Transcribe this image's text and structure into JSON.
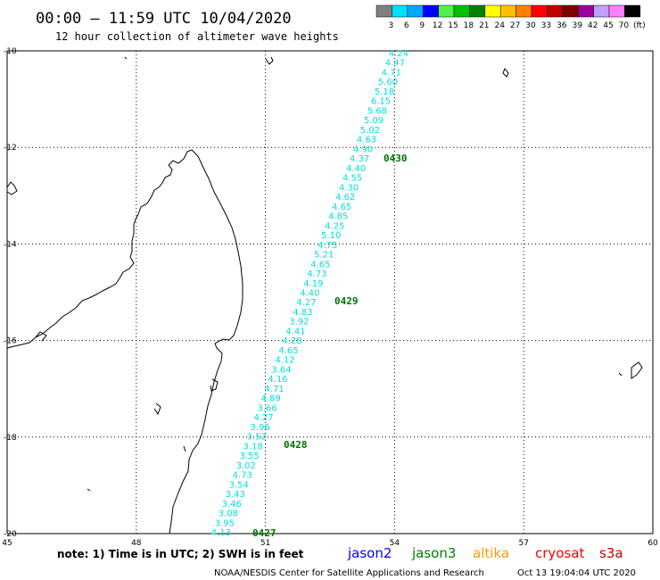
{
  "header": {
    "title": "00:00 – 11:59 UTC 10/04/2020",
    "subtitle": "12 hour collection of altimeter wave heights"
  },
  "legend": {
    "colors": [
      "#808080",
      "#00e0ff",
      "#00a8ff",
      "#0000ff",
      "#50f050",
      "#00c000",
      "#008000",
      "#ffff00",
      "#ffc000",
      "#ff8000",
      "#ff0000",
      "#c00000",
      "#800000",
      "#a000a0",
      "#c0a0ff",
      "#ff80ff",
      "#000000"
    ],
    "labels": [
      "3",
      "6",
      "9",
      "12",
      "15",
      "18",
      "21",
      "24",
      "27",
      "30",
      "33",
      "36",
      "39",
      "42",
      "45",
      "70",
      "(ft)"
    ]
  },
  "axes": {
    "lat_ticks": [
      "-10",
      "-12",
      "-14",
      "-16",
      "-18",
      "-20"
    ],
    "lon_ticks": [
      "45",
      "48",
      "51",
      "54",
      "57",
      "60"
    ]
  },
  "track": {
    "color": "#00e0e0",
    "values": [
      "4.24",
      "4.47",
      "4.71",
      "5.60",
      "5.18",
      "6.15",
      "5.68",
      "5.09",
      "5.02",
      "4.63",
      "4.90",
      "4.37",
      "4.40",
      "4.55",
      "4.30",
      "4.62",
      "4.65",
      "4.85",
      "4.25",
      "5.10",
      "4.75",
      "5.21",
      "4.65",
      "4.73",
      "4.19",
      "4.40",
      "4.27",
      "4.83",
      "3.92",
      "4.41",
      "4.28",
      "4.65",
      "4.12",
      "3.64",
      "4.16",
      "4.71",
      "4.89",
      "3.66",
      "4.27",
      "3.96",
      "3.52",
      "3.18",
      "3.55",
      "3.02",
      "4.73",
      "3.54",
      "3.43",
      "3.46",
      "3.08",
      "3.95",
      "4.13"
    ],
    "time_labels": [
      "0430",
      "0429",
      "0428",
      "0427"
    ],
    "time_color": "#007000"
  },
  "footer": {
    "note": "note: 1) Time is in UTC; 2) SWH is in feet",
    "satellites": [
      {
        "name": "jason2",
        "color": "#0000ff"
      },
      {
        "name": "jason3",
        "color": "#008000"
      },
      {
        "name": "altika",
        "color": "#ff9900"
      },
      {
        "name": "cryosat",
        "color": "#ff0000"
      },
      {
        "name": "s3a",
        "color": "#c00000"
      }
    ],
    "credit": "NOAA/NESDIS Center for Satellite Applications and Research",
    "generated": "Oct 13 19:04:04 UTC 2020"
  }
}
